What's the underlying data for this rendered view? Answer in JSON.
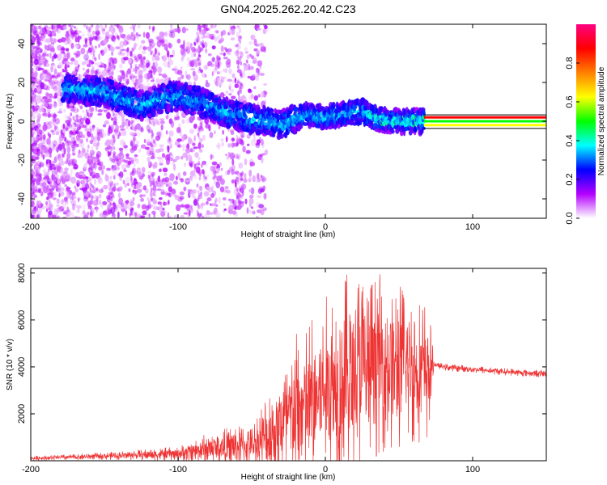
{
  "title": "GN04.2025.262.20.42.C23",
  "chart_data": [
    {
      "type": "heatmap",
      "name": "spectrogram",
      "xlabel": "Height of straight line (km)",
      "ylabel": "Frequency (Hz)",
      "xlim": [
        -200,
        150
      ],
      "ylim": [
        -50,
        50
      ],
      "xticks": [
        -200,
        -100,
        0,
        100
      ],
      "yticks": [
        -40,
        -20,
        0,
        20,
        40
      ],
      "colorbar": {
        "label": "Normalized spectral amplitude",
        "range": [
          0,
          1
        ],
        "ticks": [
          0.0,
          0.2,
          0.4,
          0.6,
          0.8
        ],
        "colors": [
          "#ffffff",
          "#b400ff",
          "#0000ff",
          "#00ffff",
          "#00ff00",
          "#ffff00",
          "#ff8000",
          "#ff0000",
          "#ff0080"
        ]
      },
      "ridge": {
        "x": [
          -175,
          -150,
          -125,
          -110,
          -100,
          -85,
          -70,
          -55,
          -40,
          -30,
          -15,
          0,
          15,
          25,
          35,
          50,
          65
        ],
        "y": [
          17,
          15,
          8,
          12,
          13,
          10,
          5,
          2,
          0,
          -2,
          3,
          2,
          4,
          5,
          1,
          0,
          0
        ]
      },
      "tone": {
        "x": [
          67,
          150
        ],
        "y": [
          -2,
          0,
          2
        ],
        "colors": [
          "#ffff00",
          "#00ff00",
          "#ff0000"
        ]
      }
    },
    {
      "type": "line",
      "name": "snr",
      "xlabel": "Height of straight line (km)",
      "ylabel": "SNR (10 * v/v)",
      "xlim": [
        -200,
        150
      ],
      "ylim": [
        0,
        8200
      ],
      "xticks": [
        -200,
        -100,
        0,
        100
      ],
      "yticks": [
        2000,
        4000,
        6000,
        8000
      ],
      "color": "#ee3333",
      "envelope": {
        "x": [
          -200,
          -150,
          -100,
          -80,
          -60,
          -50,
          -40,
          -20,
          0,
          10,
          20,
          30,
          40,
          50,
          60,
          70,
          74,
          80,
          100,
          120,
          150
        ],
        "mean": [
          100,
          200,
          300,
          500,
          600,
          650,
          1000,
          2000,
          3000,
          3500,
          3800,
          4000,
          4200,
          4000,
          3900,
          3800,
          4100,
          4000,
          3900,
          3800,
          3700
        ],
        "amplitude": [
          100,
          150,
          300,
          700,
          900,
          800,
          2000,
          3500,
          4000,
          4200,
          4500,
          4000,
          3800,
          3700,
          3200,
          3000,
          100,
          150,
          150,
          150,
          150
        ]
      }
    }
  ]
}
